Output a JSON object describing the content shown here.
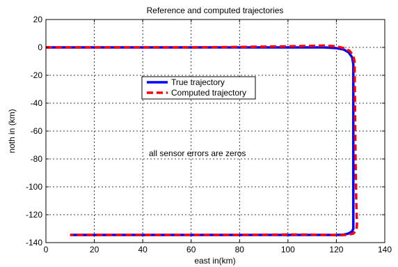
{
  "chart_data": {
    "type": "line",
    "title": "Reference and computed trajectories",
    "xlabel": "east in(km)",
    "ylabel": "noth in (km)",
    "xlim": [
      0,
      140
    ],
    "ylim": [
      -140,
      20
    ],
    "x_ticks": [
      0,
      20,
      40,
      60,
      80,
      100,
      120,
      140
    ],
    "y_ticks": [
      20,
      0,
      -20,
      -40,
      -60,
      -80,
      -100,
      -120,
      -140
    ],
    "grid": true,
    "grid_style": "dotted",
    "legend_position": "center-left",
    "annotation": "all sensor errors are zeros",
    "series": [
      {
        "name": "True trajectory",
        "color": "#0000ff",
        "line_style": "solid",
        "x": [
          0,
          20,
          40,
          60,
          80,
          100,
          115,
          120,
          123,
          125,
          126.5,
          127,
          127,
          127,
          127,
          127,
          126.5,
          125,
          123,
          120,
          100,
          80,
          60,
          40,
          20,
          10
        ],
        "y": [
          0,
          0,
          0,
          0,
          0,
          0,
          0,
          -0.5,
          -1.5,
          -3.5,
          -7,
          -12,
          -40,
          -80,
          -120,
          -130,
          -132,
          -133.5,
          -134.3,
          -134.5,
          -134.5,
          -134.5,
          -134.5,
          -134.5,
          -134.5,
          -134.5
        ]
      },
      {
        "name": "Computed trajectory",
        "color": "#ff0000",
        "line_style": "dashed",
        "x": [
          0,
          20,
          40,
          60,
          80,
          100,
          115,
          120,
          123,
          125.5,
          127,
          127.5,
          127.7,
          127.9,
          128.2,
          128.5,
          128.3,
          127,
          125,
          122,
          110,
          100,
          80,
          60,
          40,
          20,
          10
        ],
        "y": [
          0,
          0,
          0,
          0,
          0.3,
          0.8,
          1.3,
          0.8,
          -0.5,
          -2.5,
          -6,
          -10,
          -40,
          -80,
          -110,
          -127,
          -131,
          -133.5,
          -134.3,
          -134.7,
          -134.3,
          -134.2,
          -134.5,
          -134.5,
          -134.5,
          -134.5,
          -134.5
        ]
      }
    ]
  }
}
